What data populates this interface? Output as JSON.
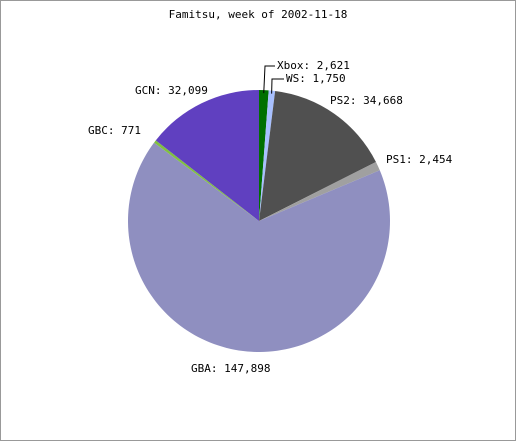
{
  "chart_data": {
    "type": "pie",
    "title": "Famitsu, week of 2002-11-18",
    "categories": [
      "Xbox",
      "WS",
      "PS2",
      "PS1",
      "GBA",
      "GBC",
      "GCN"
    ],
    "values": [
      2621,
      1750,
      34668,
      2454,
      147898,
      771,
      32099
    ],
    "value_labels": [
      "2,621",
      "1,750",
      "34,668",
      "2,454",
      "147,898",
      "771",
      "32,099"
    ],
    "colors": [
      "#007000",
      "#a8c0ff",
      "#505050",
      "#a0a0a0",
      "#8f8fc0",
      "#80c040",
      "#6040c0"
    ]
  }
}
